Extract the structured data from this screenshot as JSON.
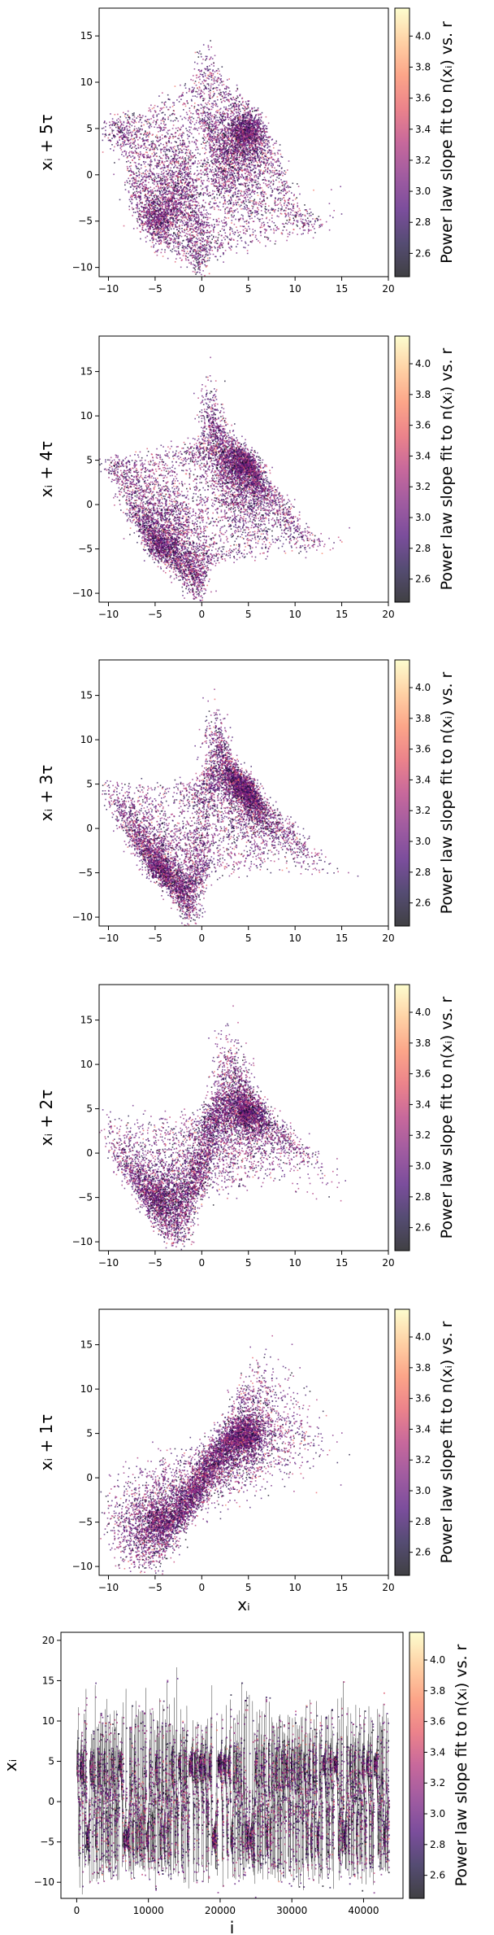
{
  "figure": {
    "colorbar_label": "Power law slope fit to n(xᵢ) vs. r",
    "colorbar_range": [
      2.45,
      4.18
    ],
    "colorbar_ticks": [
      "2.6",
      "2.8",
      "3.0",
      "3.2",
      "3.4",
      "3.6",
      "3.8",
      "4.0"
    ],
    "colormap": "magma",
    "colormap_stops": [
      "#000004",
      "#1c1044",
      "#4f127b",
      "#812581",
      "#b5367a",
      "#e55964",
      "#fb8761",
      "#fec287",
      "#fcfdbf"
    ],
    "point_alpha": 0.75
  },
  "chart_data": [
    {
      "type": "scatter",
      "ylabel": "xᵢ + 5τ",
      "xlabel": "",
      "xlim": [
        -11,
        20
      ],
      "ylim": [
        -11,
        18
      ],
      "xticks": [
        "-10",
        "-5",
        "0",
        "5",
        "10",
        "15",
        "20"
      ],
      "yticks": [
        "-10",
        "-5",
        "0",
        "5",
        "10",
        "15"
      ],
      "colorbar": true,
      "point_count": 8000
    },
    {
      "type": "scatter",
      "ylabel": "xᵢ + 4τ",
      "xlabel": "",
      "xlim": [
        -11,
        20
      ],
      "ylim": [
        -11,
        19
      ],
      "xticks": [
        "-10",
        "-5",
        "0",
        "5",
        "10",
        "15",
        "20"
      ],
      "yticks": [
        "-10",
        "-5",
        "0",
        "5",
        "10",
        "15"
      ],
      "colorbar": true,
      "point_count": 8000
    },
    {
      "type": "scatter",
      "ylabel": "xᵢ + 3τ",
      "xlabel": "",
      "xlim": [
        -11,
        20
      ],
      "ylim": [
        -11,
        19
      ],
      "xticks": [
        "-10",
        "-5",
        "0",
        "5",
        "10",
        "15",
        "20"
      ],
      "yticks": [
        "-10",
        "-5",
        "0",
        "5",
        "10",
        "15"
      ],
      "colorbar": true,
      "point_count": 8000
    },
    {
      "type": "scatter",
      "ylabel": "xᵢ + 2τ",
      "xlabel": "",
      "xlim": [
        -11,
        20
      ],
      "ylim": [
        -11,
        19
      ],
      "xticks": [
        "-10",
        "-5",
        "0",
        "5",
        "10",
        "15",
        "20"
      ],
      "yticks": [
        "-10",
        "-5",
        "0",
        "5",
        "10",
        "15"
      ],
      "colorbar": true,
      "point_count": 8000
    },
    {
      "type": "scatter",
      "ylabel": "xᵢ + 1τ",
      "xlabel": "xᵢ",
      "xlim": [
        -11,
        20
      ],
      "ylim": [
        -11,
        19
      ],
      "xticks": [
        "-10",
        "-5",
        "0",
        "5",
        "10",
        "15",
        "20"
      ],
      "yticks": [
        "-10",
        "-5",
        "0",
        "5",
        "10",
        "15"
      ],
      "colorbar": true,
      "point_count": 8000
    },
    {
      "type": "line",
      "ylabel": "xᵢ",
      "xlabel": "i",
      "xlim": [
        -2200,
        45500
      ],
      "ylim": [
        -12,
        21
      ],
      "xticks": [
        "0",
        "10000",
        "20000",
        "30000",
        "40000"
      ],
      "yticks": [
        "-10",
        "-5",
        "0",
        "5",
        "10",
        "15",
        "20"
      ],
      "x_range": [
        0,
        43500
      ],
      "colorbar": true,
      "point_count": 7000
    }
  ]
}
